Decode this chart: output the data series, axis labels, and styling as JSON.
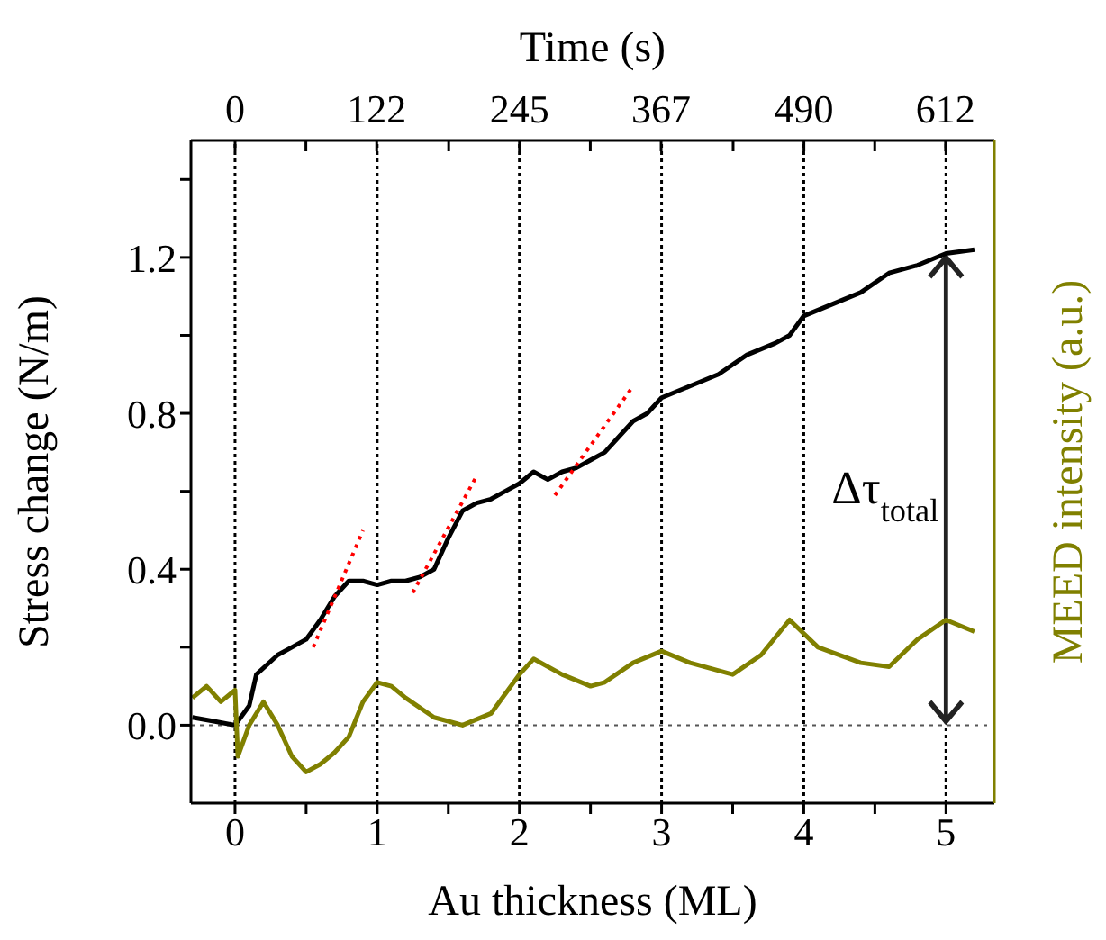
{
  "chart_data": {
    "type": "line",
    "xlabel": "Au thickness (ML)",
    "ylabel": "Stress change (N/m)",
    "y2label": "MEED intensity (a.u.)",
    "x2label": "Time (s)",
    "xlim": [
      -0.31,
      5.34
    ],
    "xticks": [
      0,
      {
        "value": 0.5,
        "label": null
      },
      1,
      {
        "value": 1.5,
        "label": null
      },
      2,
      {
        "value": 2.5,
        "label": null
      },
      3,
      {
        "value": 3.5,
        "label": null
      },
      4,
      {
        "value": 4.5,
        "label": null
      },
      5
    ],
    "ylim": [
      -0.2,
      1.5
    ],
    "yticks": [
      {
        "value": 0,
        "label": "0.0"
      },
      {
        "value": 0.2,
        "label": null
      },
      0.4,
      {
        "value": 0.6,
        "label": null
      },
      0.8,
      {
        "value": 1.0,
        "label": null
      },
      1.2,
      {
        "value": 1.4,
        "label": null
      }
    ],
    "x2lim": [
      -38,
      654
    ],
    "x2ticks": [
      0,
      {
        "value": 61,
        "label": null
      },
      122,
      {
        "value": 184,
        "label": null
      },
      245,
      {
        "value": 306,
        "label": null
      },
      367,
      {
        "value": 429,
        "label": null
      },
      490,
      {
        "value": 551,
        "label": null
      },
      612
    ],
    "grid": "x",
    "line_style": "solid",
    "marker": "none",
    "ref_lines": [
      {
        "axis": "y",
        "value": 0,
        "color": "#555555",
        "line_style": "dotted"
      }
    ],
    "annotations": [
      "Δτ$_{total}$"
    ],
    "series": [
      {
        "color": "#000000",
        "x": [
          -0.3,
          -0.15,
          0,
          0.1,
          0.15,
          0.3,
          0.4,
          0.5,
          0.6,
          0.7,
          0.8,
          0.9,
          1.0,
          1.1,
          1.2,
          1.3,
          1.4,
          1.5,
          1.6,
          1.7,
          1.8,
          1.9,
          2.0,
          2.1,
          2.2,
          2.3,
          2.4,
          2.5,
          2.6,
          2.7,
          2.8,
          2.9,
          3.0,
          3.2,
          3.4,
          3.6,
          3.8,
          3.9,
          4.0,
          4.2,
          4.4,
          4.6,
          4.8,
          5.0,
          5.2
        ],
        "values": [
          0.02,
          0.01,
          0.0,
          0.05,
          0.13,
          0.18,
          0.2,
          0.22,
          0.27,
          0.33,
          0.37,
          0.37,
          0.36,
          0.37,
          0.37,
          0.38,
          0.4,
          0.48,
          0.55,
          0.57,
          0.58,
          0.6,
          0.62,
          0.65,
          0.63,
          0.65,
          0.66,
          0.68,
          0.7,
          0.74,
          0.78,
          0.8,
          0.84,
          0.87,
          0.9,
          0.95,
          0.98,
          1.0,
          1.05,
          1.08,
          1.11,
          1.16,
          1.18,
          1.21,
          1.22
        ]
      },
      {
        "color": "#808000",
        "x": [
          -0.3,
          -0.2,
          -0.1,
          0,
          0.02,
          0.1,
          0.2,
          0.3,
          0.4,
          0.5,
          0.6,
          0.7,
          0.8,
          0.9,
          1.0,
          1.1,
          1.2,
          1.4,
          1.6,
          1.8,
          2.0,
          2.1,
          2.3,
          2.5,
          2.6,
          2.8,
          3.0,
          3.2,
          3.5,
          3.7,
          3.9,
          4.1,
          4.4,
          4.6,
          4.8,
          5.0,
          5.2
        ],
        "values": [
          0.07,
          0.1,
          0.06,
          0.09,
          -0.08,
          0.0,
          0.06,
          0.0,
          -0.08,
          -0.12,
          -0.1,
          -0.07,
          -0.03,
          0.06,
          0.11,
          0.1,
          0.07,
          0.02,
          0.0,
          0.03,
          0.13,
          0.17,
          0.13,
          0.1,
          0.11,
          0.16,
          0.19,
          0.16,
          0.13,
          0.18,
          0.27,
          0.2,
          0.16,
          0.15,
          0.22,
          0.27,
          0.24
        ]
      },
      {
        "type": "line",
        "color": "#ff0000",
        "line_style": "dotted",
        "x": [
          0.55,
          0.9
        ],
        "values": [
          0.2,
          0.5
        ]
      },
      {
        "type": "line",
        "color": "#ff0000",
        "line_style": "dotted",
        "x": [
          1.25,
          1.7
        ],
        "values": [
          0.34,
          0.64
        ]
      },
      {
        "type": "line",
        "color": "#ff0000",
        "line_style": "dotted",
        "x": [
          2.25,
          2.8
        ],
        "values": [
          0.59,
          0.87
        ]
      }
    ]
  }
}
